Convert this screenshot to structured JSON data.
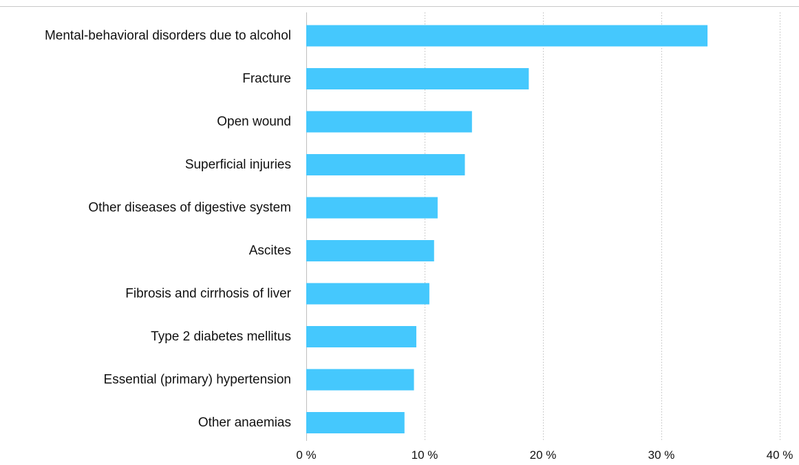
{
  "chart_data": {
    "type": "bar",
    "orientation": "horizontal",
    "categories": [
      "Mental-behavioral disorders due to alcohol",
      "Fracture",
      "Open wound",
      "Superficial injuries",
      "Other diseases of digestive system",
      "Ascites",
      "Fibrosis and cirrhosis of liver",
      "Type 2 diabetes mellitus",
      "Essential (primary) hypertension",
      "Other anaemias"
    ],
    "values": [
      33.9,
      18.8,
      14.0,
      13.4,
      11.1,
      10.8,
      10.4,
      9.3,
      9.1,
      8.3
    ],
    "xlim": [
      0,
      40
    ],
    "xticks": [
      0,
      10,
      20,
      30,
      40
    ],
    "tick_labels": [
      "0 %",
      "10 %",
      "20 %",
      "30 %",
      "40 %"
    ],
    "title": "",
    "xlabel": "",
    "ylabel": "",
    "grid": "vertical-dotted",
    "legend": "none",
    "bar_color": "#45C8FD",
    "top_rule_color": "#C8C8C8",
    "grid_color": "#BDBDBD"
  }
}
